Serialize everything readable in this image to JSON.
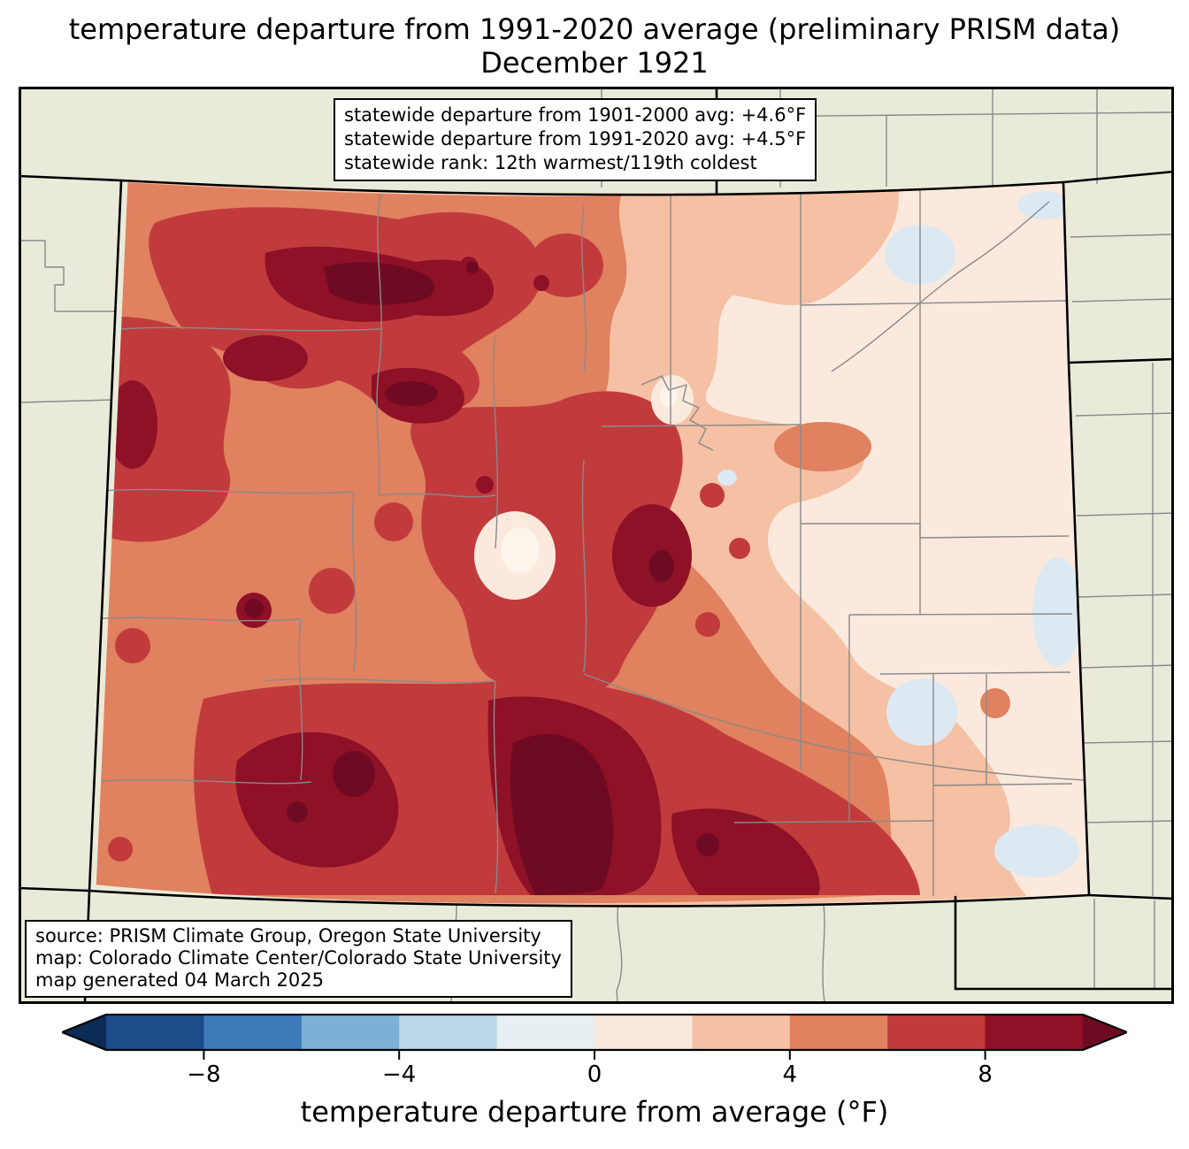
{
  "title": {
    "line1": "temperature departure from 1991-2020 average (preliminary PRISM data)",
    "line2": "December 1921"
  },
  "stats_box": {
    "line1": "statewide departure from 1901-2000 avg: +4.6°F",
    "line2": "statewide departure from 1991-2020 avg: +4.5°F",
    "line3": "statewide rank: 12th warmest/119th coldest"
  },
  "source_box": {
    "line1": "source: PRISM Climate Group, Oregon State University",
    "line2": "map: Colorado Climate Center/Colorado State University",
    "line3": "map generated 04 March 2025"
  },
  "colorbar": {
    "label": "temperature departure from average (°F)",
    "range_min": -10,
    "range_max": 10,
    "bin_size": 2,
    "tick_values": [
      -8,
      -4,
      0,
      4,
      8
    ],
    "tick_labels": [
      "−8",
      "−4",
      "0",
      "4",
      "8"
    ],
    "bin_colors": [
      "#1c4c89",
      "#3c7ab8",
      "#7db0d5",
      "#b9d7e9",
      "#e7eff3",
      "#f9e9dd",
      "#f5c0a3",
      "#e0815f",
      "#c23b3c",
      "#8e1127"
    ],
    "under_color": "#0c2b55",
    "over_color": "#6e0b22",
    "outline_color": "#000000"
  },
  "map": {
    "palette": {
      "background": "#eaeada",
      "state_border": "#000000",
      "county_line": "#8a8a8a",
      "bin_neg2_0": "#dde9f2",
      "bin_0_2": "#fbe9dd",
      "bin_2_4": "#f5c0a3",
      "bin_4_6": "#e0815f",
      "bin_6_8": "#c23b3c",
      "bin_8_10": "#8e1127",
      "over_10": "#6e0b22",
      "center_light": "#fdf4ec"
    }
  }
}
